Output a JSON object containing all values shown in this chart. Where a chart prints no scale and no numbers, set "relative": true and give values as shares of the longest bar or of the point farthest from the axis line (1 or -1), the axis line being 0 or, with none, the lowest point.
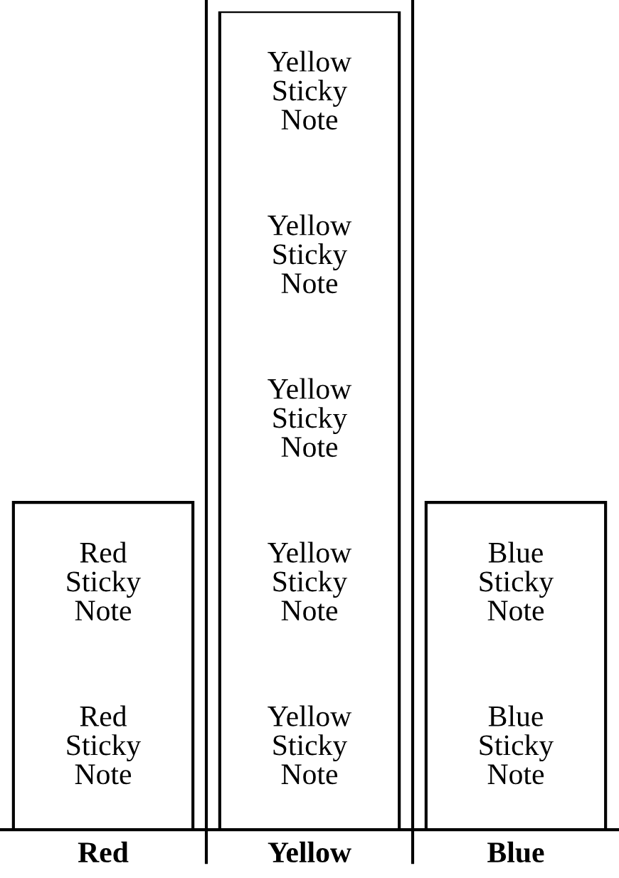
{
  "chart_data": {
    "type": "bar",
    "relative": true,
    "categories": [
      "Red",
      "Yellow",
      "Blue"
    ],
    "values": [
      0.4,
      1,
      0.4
    ],
    "color": "#ffffff",
    "annotations": [
      "Red Sticky Note",
      "Red Sticky Note",
      "Yellow Sticky Note",
      "Yellow Sticky Note",
      "Yellow Sticky Note",
      "Yellow Sticky Note",
      "Yellow Sticky Note",
      "Blue Sticky Note",
      "Blue Sticky Note"
    ]
  }
}
